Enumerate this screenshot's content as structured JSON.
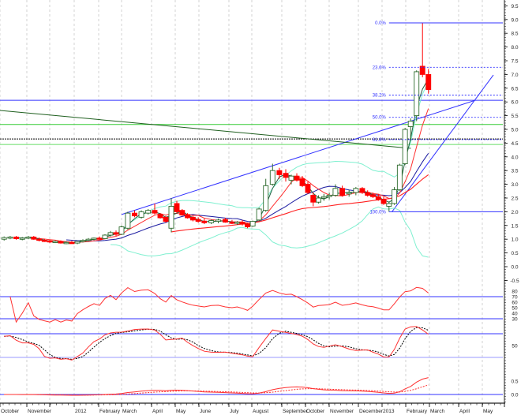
{
  "chart_data": {
    "type": "candlestick",
    "colors": {
      "up": "#2e6b2e",
      "down": "#ff0000",
      "bollinger": "#7ff0d0",
      "ma_fast": "#1f5f3f",
      "ma_mid": "#ff3030",
      "ma_slow": "#1a1aa0",
      "ma_long": "#ff2020",
      "guide_blue": "#3333ff",
      "guide_green": "#33cc33"
    },
    "months": [
      {
        "date": "2011-10-01",
        "label": "October"
      },
      {
        "date": "2011-11-01",
        "label": "November"
      },
      {
        "date": "2011-12-01",
        "label": ""
      },
      {
        "date": "2012-01-01",
        "label": "2012"
      },
      {
        "date": "2012-02-01",
        "label": "February"
      },
      {
        "date": "2012-03-01",
        "label": "March"
      },
      {
        "date": "2012-04-01",
        "label": "April"
      },
      {
        "date": "2012-05-01",
        "label": "May"
      },
      {
        "date": "2012-06-01",
        "label": "June"
      },
      {
        "date": "2012-07-01",
        "label": "July"
      },
      {
        "date": "2012-08-01",
        "label": "August"
      },
      {
        "date": "2012-09-01",
        "label": "September"
      },
      {
        "date": "2012-10-01",
        "label": "October"
      },
      {
        "date": "2012-11-01",
        "label": "November"
      },
      {
        "date": "2012-12-01",
        "label": "December"
      },
      {
        "date": "2013-01-01",
        "label": "2013"
      },
      {
        "date": "2013-02-01",
        "label": "February"
      },
      {
        "date": "2013-03-01",
        "label": "March"
      },
      {
        "date": "2013-04-01",
        "label": "April"
      },
      {
        "date": "2013-05-01",
        "label": "May"
      }
    ],
    "price_axis": {
      "min": -0.5,
      "max": 9.5,
      "ticks": [
        "9.5",
        "9.0",
        "8.5",
        "8.0",
        "7.5",
        "7.0",
        "6.5",
        "6.0",
        "5.5",
        "5.0",
        "4.5",
        "4.0",
        "3.5",
        "3.0",
        "2.5",
        "2.0",
        "1.5",
        "1.0",
        "0.5",
        "0.0",
        "-0.5"
      ]
    },
    "candles": [
      [
        "2011-10-03",
        1.0,
        1.1,
        0.95,
        1.06
      ],
      [
        "2011-10-10",
        1.06,
        1.12,
        1.0,
        1.08
      ],
      [
        "2011-10-17",
        1.08,
        1.12,
        0.98,
        1.02
      ],
      [
        "2011-10-24",
        1.02,
        1.08,
        0.96,
        1.04
      ],
      [
        "2011-10-31",
        1.04,
        1.12,
        1.0,
        1.08
      ],
      [
        "2011-11-07",
        1.08,
        1.12,
        0.98,
        1.0
      ],
      [
        "2011-11-14",
        1.0,
        1.06,
        0.92,
        0.96
      ],
      [
        "2011-11-21",
        0.96,
        1.02,
        0.9,
        0.94
      ],
      [
        "2011-11-28",
        0.94,
        0.98,
        0.86,
        0.9
      ],
      [
        "2011-12-05",
        0.9,
        0.96,
        0.86,
        0.92
      ],
      [
        "2011-12-12",
        0.92,
        0.96,
        0.84,
        0.86
      ],
      [
        "2011-12-19",
        0.86,
        0.92,
        0.82,
        0.88
      ],
      [
        "2011-12-26",
        0.88,
        0.94,
        0.84,
        0.86
      ],
      [
        "2012-01-02",
        0.86,
        0.94,
        0.82,
        0.92
      ],
      [
        "2012-01-09",
        0.92,
        1.0,
        0.88,
        0.96
      ],
      [
        "2012-01-16",
        0.96,
        1.04,
        0.92,
        1.0
      ],
      [
        "2012-01-23",
        1.0,
        1.06,
        0.96,
        1.04
      ],
      [
        "2012-01-30",
        1.04,
        1.1,
        0.98,
        1.02
      ],
      [
        "2012-02-06",
        1.02,
        1.18,
        1.0,
        1.15
      ],
      [
        "2012-02-13",
        1.15,
        1.3,
        1.1,
        1.24
      ],
      [
        "2012-02-20",
        1.24,
        1.32,
        1.12,
        1.18
      ],
      [
        "2012-02-27",
        1.18,
        1.5,
        1.15,
        1.45
      ],
      [
        "2012-03-05",
        1.4,
        2.0,
        1.35,
        1.95
      ],
      [
        "2012-03-12",
        1.95,
        2.05,
        1.8,
        1.85
      ],
      [
        "2012-03-19",
        1.8,
        2.05,
        1.75,
        2.0
      ],
      [
        "2012-03-26",
        1.95,
        2.1,
        1.9,
        2.05
      ],
      [
        "2012-04-02",
        2.05,
        2.3,
        1.9,
        1.95
      ],
      [
        "2012-04-09",
        1.9,
        1.95,
        1.75,
        1.78
      ],
      [
        "2012-04-16",
        1.8,
        1.85,
        1.6,
        1.65
      ],
      [
        "2012-04-23",
        1.4,
        2.5,
        1.25,
        2.2
      ],
      [
        "2012-04-30",
        2.3,
        2.4,
        1.95,
        2.0
      ],
      [
        "2012-05-07",
        2.05,
        2.1,
        1.85,
        1.88
      ],
      [
        "2012-05-14",
        1.9,
        1.95,
        1.75,
        1.78
      ],
      [
        "2012-05-21",
        1.8,
        1.85,
        1.65,
        1.7
      ],
      [
        "2012-05-28",
        1.72,
        1.8,
        1.6,
        1.65
      ],
      [
        "2012-06-04",
        1.66,
        1.75,
        1.55,
        1.6
      ],
      [
        "2012-06-11",
        1.6,
        1.72,
        1.55,
        1.68
      ],
      [
        "2012-06-18",
        1.65,
        1.75,
        1.58,
        1.7
      ],
      [
        "2012-06-25",
        1.72,
        1.78,
        1.6,
        1.62
      ],
      [
        "2012-07-02",
        1.62,
        1.7,
        1.55,
        1.58
      ],
      [
        "2012-07-09",
        1.58,
        1.66,
        1.52,
        1.62
      ],
      [
        "2012-07-16",
        1.62,
        1.7,
        1.5,
        1.55
      ],
      [
        "2012-07-23",
        1.55,
        1.6,
        1.4,
        1.45
      ],
      [
        "2012-07-30",
        1.48,
        1.68,
        1.45,
        1.65
      ],
      [
        "2012-08-06",
        1.7,
        2.15,
        1.65,
        2.1
      ],
      [
        "2012-08-13",
        2.05,
        3.2,
        2.0,
        2.95
      ],
      [
        "2012-08-20",
        3.0,
        3.75,
        2.95,
        3.5
      ],
      [
        "2012-08-27",
        3.5,
        3.6,
        3.2,
        3.35
      ],
      [
        "2012-09-03",
        3.4,
        3.55,
        3.1,
        3.25
      ],
      [
        "2012-09-10",
        3.15,
        3.35,
        3.0,
        3.3
      ],
      [
        "2012-09-17",
        3.3,
        3.4,
        3.1,
        3.15
      ],
      [
        "2012-09-24",
        3.2,
        3.3,
        2.9,
        2.95
      ],
      [
        "2012-10-01",
        3.0,
        3.1,
        2.65,
        2.7
      ],
      [
        "2012-10-08",
        2.6,
        2.7,
        2.2,
        2.35
      ],
      [
        "2012-10-15",
        2.35,
        2.6,
        2.3,
        2.5
      ],
      [
        "2012-10-22",
        2.5,
        2.65,
        2.4,
        2.55
      ],
      [
        "2012-10-29",
        2.55,
        2.7,
        2.45,
        2.6
      ],
      [
        "2012-11-05",
        2.6,
        3.0,
        2.55,
        2.85
      ],
      [
        "2012-11-12",
        2.85,
        2.95,
        2.55,
        2.6
      ],
      [
        "2012-11-19",
        2.65,
        2.8,
        2.55,
        2.7
      ],
      [
        "2012-11-26",
        2.7,
        2.9,
        2.6,
        2.85
      ],
      [
        "2012-12-03",
        2.85,
        2.9,
        2.65,
        2.7
      ],
      [
        "2012-12-10",
        2.7,
        2.78,
        2.55,
        2.6
      ],
      [
        "2012-12-17",
        2.62,
        2.7,
        2.5,
        2.55
      ],
      [
        "2012-12-24",
        2.55,
        2.65,
        2.4,
        2.45
      ],
      [
        "2012-12-31",
        2.45,
        2.55,
        2.25,
        2.3
      ],
      [
        "2013-01-07",
        2.2,
        2.35,
        2.0,
        2.3
      ],
      [
        "2013-01-14",
        2.3,
        2.9,
        2.25,
        2.8
      ],
      [
        "2013-01-21",
        2.8,
        3.75,
        2.75,
        3.7
      ],
      [
        "2013-01-28",
        3.75,
        5.05,
        3.7,
        5.0
      ],
      [
        "2013-02-04",
        5.1,
        5.4,
        4.6,
        5.3
      ],
      [
        "2013-02-11",
        5.5,
        7.15,
        5.3,
        7.1
      ],
      [
        "2013-02-18",
        7.3,
        8.88,
        6.9,
        7.0
      ],
      [
        "2013-02-25",
        7.0,
        7.2,
        6.3,
        6.45
      ]
    ],
    "fibonacci": {
      "start_date": "2013-01-07",
      "levels": [
        {
          "label": "0.0%",
          "value": 8.88
        },
        {
          "label": "23.6%",
          "value": 7.26
        },
        {
          "label": "38.2%",
          "value": 6.25
        },
        {
          "label": "50.0%",
          "value": 5.44
        },
        {
          "label": "61.8%",
          "value": 4.63
        },
        {
          "label": "100.0%",
          "value": 2.0
        }
      ]
    },
    "horizontal_lines": [
      {
        "value": 6.06,
        "color": "#3333ff",
        "style": "solid"
      },
      {
        "value": 5.18,
        "color": "#33cc33",
        "style": "solid"
      },
      {
        "value": 4.65,
        "color": "#000000",
        "style": "dotted"
      },
      {
        "value": 4.45,
        "color": "#66dd66",
        "style": "solid"
      }
    ],
    "trendlines": [
      {
        "from": [
          "2012-03-01",
          1.9
        ],
        "to": [
          "2013-04-22",
          6.06
        ],
        "color": "#3333ff"
      },
      {
        "from": [
          "2013-01-14",
          2.0
        ],
        "to": [
          "2013-05-15",
          6.98
        ],
        "color": "#3333ff"
      },
      {
        "from": [
          "2011-10-01",
          5.69
        ],
        "to": [
          "2013-02-07",
          4.31
        ],
        "color": "#1f5f1f"
      }
    ],
    "rsi_panel": {
      "ticks": [
        "80",
        "70",
        "60",
        "50",
        "40",
        "30"
      ],
      "levels": [
        70,
        30
      ]
    },
    "stoch_panel": {
      "ticks": [
        "50"
      ],
      "levels": [
        80,
        20
      ]
    },
    "macd_panel": {
      "ticks": [
        "0.5",
        "0.0"
      ],
      "levels": [
        0
      ]
    }
  }
}
